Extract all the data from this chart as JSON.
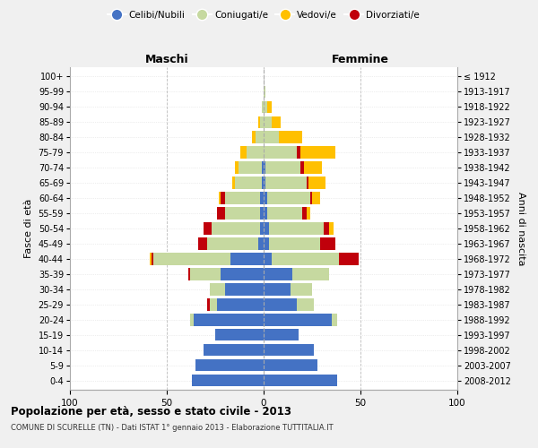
{
  "age_groups": [
    "0-4",
    "5-9",
    "10-14",
    "15-19",
    "20-24",
    "25-29",
    "30-34",
    "35-39",
    "40-44",
    "45-49",
    "50-54",
    "55-59",
    "60-64",
    "65-69",
    "70-74",
    "75-79",
    "80-84",
    "85-89",
    "90-94",
    "95-99",
    "100+"
  ],
  "birth_years": [
    "2008-2012",
    "2003-2007",
    "1998-2002",
    "1993-1997",
    "1988-1992",
    "1983-1987",
    "1978-1982",
    "1973-1977",
    "1968-1972",
    "1963-1967",
    "1958-1962",
    "1953-1957",
    "1948-1952",
    "1943-1947",
    "1938-1942",
    "1933-1937",
    "1928-1932",
    "1923-1927",
    "1918-1922",
    "1913-1917",
    "≤ 1912"
  ],
  "maschi": {
    "celibi": [
      37,
      35,
      31,
      25,
      36,
      24,
      20,
      22,
      17,
      3,
      2,
      2,
      2,
      1,
      1,
      0,
      0,
      0,
      0,
      0,
      0
    ],
    "coniugati": [
      0,
      0,
      0,
      0,
      2,
      4,
      8,
      16,
      40,
      26,
      25,
      18,
      18,
      14,
      12,
      9,
      4,
      2,
      1,
      0,
      0
    ],
    "vedovi": [
      0,
      0,
      0,
      0,
      0,
      0,
      0,
      0,
      1,
      0,
      0,
      0,
      1,
      1,
      2,
      3,
      2,
      1,
      0,
      0,
      0
    ],
    "divorziati": [
      0,
      0,
      0,
      0,
      0,
      1,
      0,
      1,
      1,
      5,
      4,
      4,
      2,
      0,
      0,
      0,
      0,
      0,
      0,
      0,
      0
    ]
  },
  "femmine": {
    "nubili": [
      38,
      28,
      26,
      18,
      35,
      17,
      14,
      15,
      4,
      3,
      3,
      2,
      2,
      1,
      1,
      0,
      0,
      0,
      0,
      0,
      0
    ],
    "coniugate": [
      0,
      0,
      0,
      0,
      3,
      9,
      11,
      19,
      35,
      26,
      28,
      18,
      22,
      21,
      18,
      17,
      8,
      4,
      2,
      1,
      0
    ],
    "vedove": [
      0,
      0,
      0,
      0,
      0,
      0,
      0,
      0,
      0,
      0,
      2,
      2,
      4,
      9,
      9,
      18,
      12,
      5,
      2,
      0,
      0
    ],
    "divorziate": [
      0,
      0,
      0,
      0,
      0,
      0,
      0,
      0,
      10,
      8,
      3,
      2,
      1,
      1,
      2,
      2,
      0,
      0,
      0,
      0,
      0
    ]
  },
  "color_celibi": "#4472c4",
  "color_coniugati": "#c6d9a0",
  "color_vedovi": "#ffc000",
  "color_divorziati": "#c0000b",
  "xlim": 100,
  "title": "Popolazione per età, sesso e stato civile - 2013",
  "subtitle": "COMUNE DI SCURELLE (TN) - Dati ISTAT 1° gennaio 2013 - Elaborazione TUTTITALIA.IT",
  "ylabel_left": "Fasce di età",
  "ylabel_right": "Anni di nascita",
  "xlabel_maschi": "Maschi",
  "xlabel_femmine": "Femmine",
  "bg_color": "#f0f0f0",
  "plot_bg_color": "#ffffff",
  "legend_labels": [
    "Celibi/Nubili",
    "Coniugati/e",
    "Vedovi/e",
    "Divorziati/e"
  ]
}
